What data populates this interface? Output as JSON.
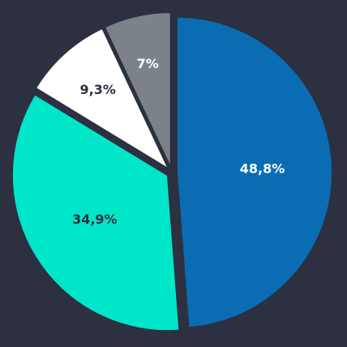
{
  "chart_data": {
    "type": "pie",
    "values": [
      48.8,
      34.9,
      9.3,
      7
    ],
    "value_labels": [
      "48,8%",
      "34,9%",
      "9,3%",
      "7%"
    ],
    "colors": [
      "#0a6db3",
      "#00e6c9",
      "#ffffff",
      "#7b8388"
    ],
    "label_colors": [
      "#ffffff",
      "#2c3040",
      "#2c3040",
      "#ffffff"
    ]
  }
}
